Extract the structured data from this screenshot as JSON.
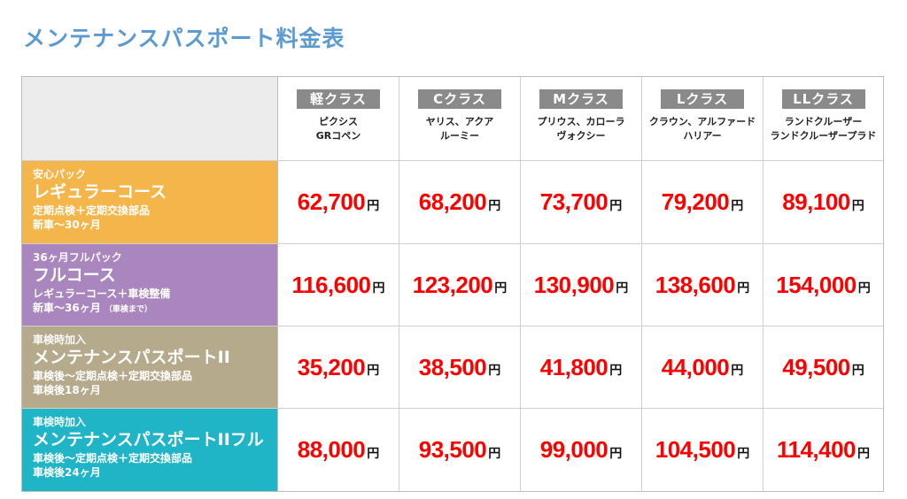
{
  "page": {
    "title": "メンテナンスパスポート料金表"
  },
  "classes": [
    {
      "label": "軽クラス",
      "models": [
        "ピクシス",
        "GRコペン"
      ]
    },
    {
      "label": "Cクラス",
      "models": [
        "ヤリス、アクア",
        "ルーミー"
      ]
    },
    {
      "label": "Mクラス",
      "models": [
        "プリウス、カローラ",
        "ヴォクシー"
      ]
    },
    {
      "label": "Lクラス",
      "models": [
        "クラウン、アルファード",
        "ハリアー"
      ]
    },
    {
      "label": "LLクラス",
      "models": [
        "ランドクルーザー",
        "ランドクルーザープラド"
      ]
    }
  ],
  "yen_label": "円",
  "plans": [
    {
      "sub": "安心パック",
      "name": "レギュラーコース",
      "desc1": "定期点検＋定期交換部品",
      "desc2": "新車〜30ヶ月",
      "desc2_note": "",
      "color": "#f4b64b",
      "prices": [
        "62,700",
        "68,200",
        "73,700",
        "79,200",
        "89,100"
      ]
    },
    {
      "sub": "36ヶ月フルパック",
      "name": "フルコース",
      "desc1": "レギュラーコース＋車検整備",
      "desc2": "新車〜36ヶ月",
      "desc2_note": "（車検まで）",
      "color": "#a987be",
      "prices": [
        "116,600",
        "123,200",
        "130,900",
        "138,600",
        "154,000"
      ]
    },
    {
      "sub": "車検時加入",
      "name": "メンテナンスパスポートII",
      "desc1": "車検後〜定期点検＋定期交換部品",
      "desc2": "車検後18ヶ月",
      "desc2_note": "",
      "color": "#b6aa8d",
      "prices": [
        "35,200",
        "38,500",
        "41,800",
        "44,000",
        "49,500"
      ]
    },
    {
      "sub": "車検時加入",
      "name": "メンテナンスパスポートIIフル",
      "desc1": "車検後〜定期点検＋定期交換部品",
      "desc2": "車検後24ヶ月",
      "desc2_note": "",
      "color": "#1fb5c6",
      "prices": [
        "88,000",
        "93,500",
        "99,000",
        "104,500",
        "114,400"
      ]
    }
  ]
}
